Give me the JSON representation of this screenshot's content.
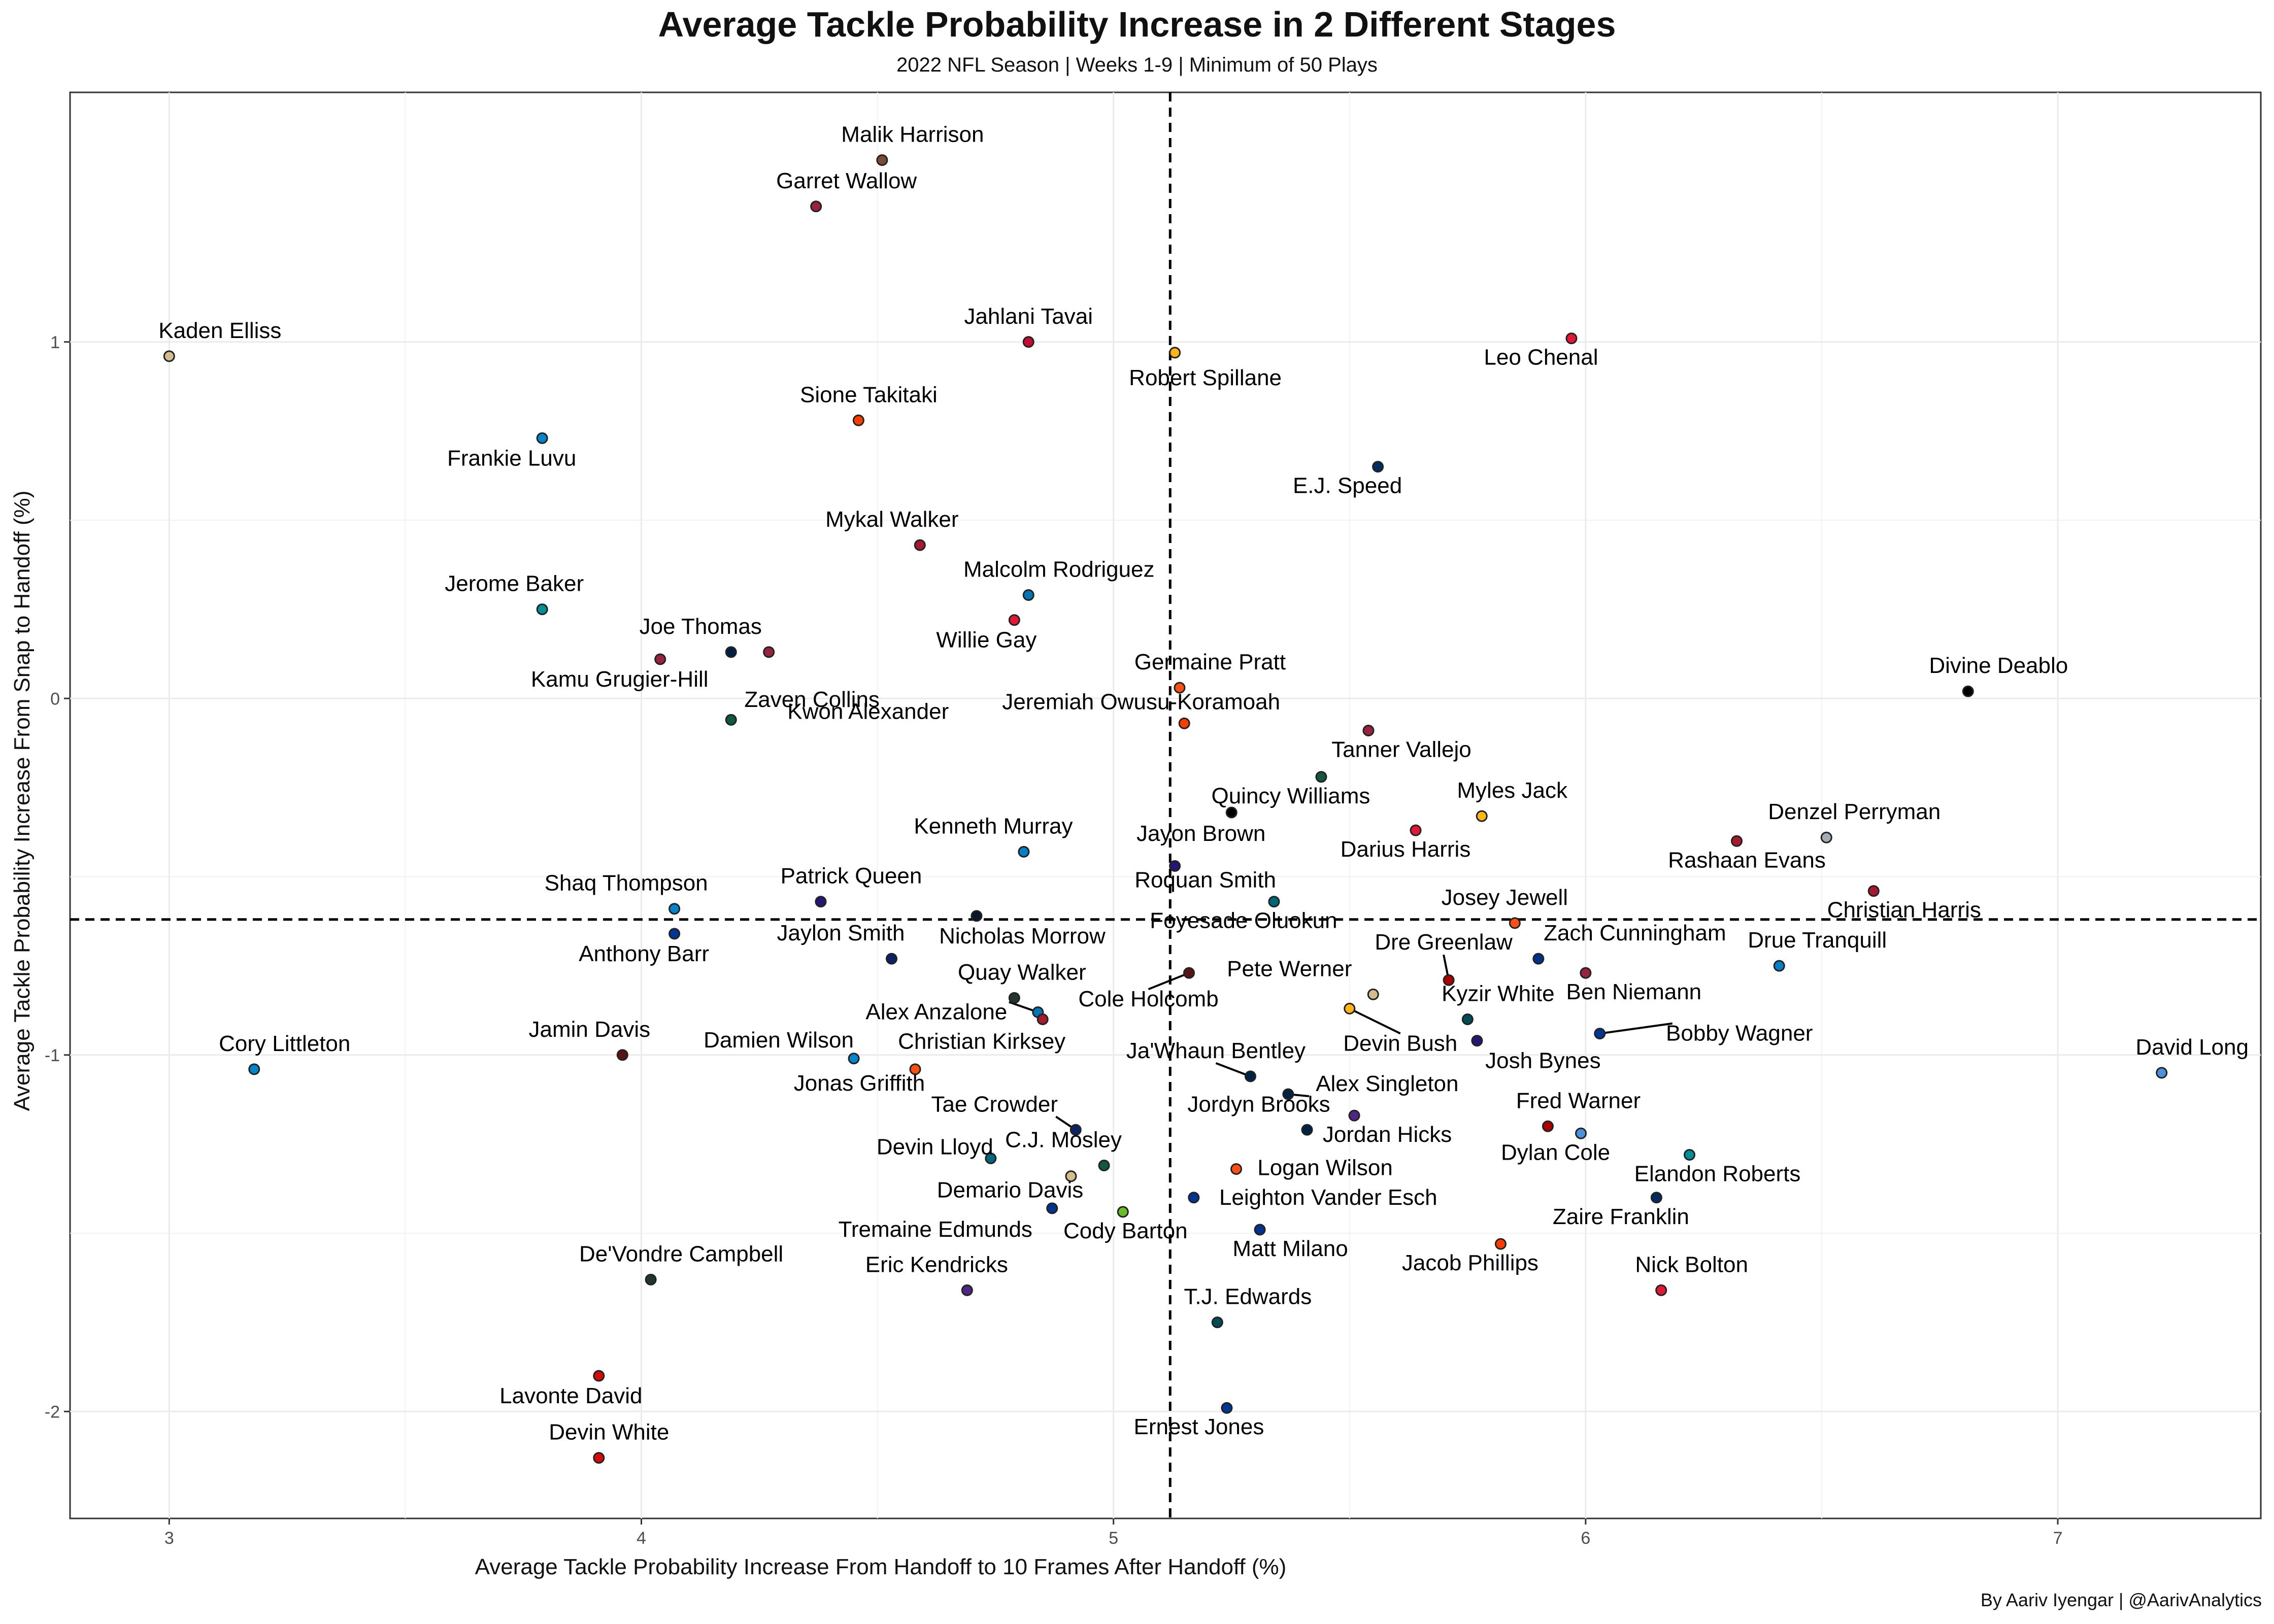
{
  "title": "Average Tackle Probability Increase in 2 Different Stages",
  "subtitle": "2022 NFL Season | Weeks 1-9 | Minimum of 50 Plays",
  "caption": "By Aariv Iyengar | @AarivAnalytics",
  "chart_data": {
    "type": "scatter",
    "xlabel": "Average Tackle Probability Increase From Handoff to 10 Frames After Handoff (%)",
    "ylabel": "Average Tackle Probability Increase From Snap to Handoff (%)",
    "xlim": [
      2.79,
      7.43
    ],
    "ylim": [
      -2.3,
      1.7
    ],
    "xticks": [
      3,
      4,
      5,
      6,
      7
    ],
    "yticks": [
      -2,
      -1,
      0,
      1
    ],
    "grid": true,
    "reference_lines": {
      "x": 5.12,
      "y": -0.62
    },
    "points": [
      {
        "label": "Malik Harrison",
        "x": 4.51,
        "y": 1.51,
        "color": "#7b4b3a"
      },
      {
        "label": "Garret Wallow",
        "x": 4.37,
        "y": 1.38,
        "color": "#97233f"
      },
      {
        "label": "Kaden Elliss",
        "x": 3.0,
        "y": 0.96,
        "color": "#d3bc8d"
      },
      {
        "label": "Jahlani Tavai",
        "x": 4.82,
        "y": 1.0,
        "color": "#c60c30"
      },
      {
        "label": "Robert Spillane",
        "x": 5.13,
        "y": 0.97,
        "color": "#ffb612"
      },
      {
        "label": "Leo Chenal",
        "x": 5.97,
        "y": 1.01,
        "color": "#e31837"
      },
      {
        "label": "Sione Takitaki",
        "x": 4.46,
        "y": 0.78,
        "color": "#ff3c00"
      },
      {
        "label": "Frankie Luvu",
        "x": 3.79,
        "y": 0.73,
        "color": "#0085ca"
      },
      {
        "label": "E.J. Speed",
        "x": 5.56,
        "y": 0.65,
        "color": "#002c5f"
      },
      {
        "label": "Mykal Walker",
        "x": 4.59,
        "y": 0.43,
        "color": "#a71930"
      },
      {
        "label": "Malcolm Rodriguez",
        "x": 4.82,
        "y": 0.29,
        "color": "#0076b6"
      },
      {
        "label": "Jerome Baker",
        "x": 3.79,
        "y": 0.25,
        "color": "#008e97"
      },
      {
        "label": "Willie Gay",
        "x": 4.79,
        "y": 0.22,
        "color": "#e31837"
      },
      {
        "label": "Joe Thomas",
        "x": 4.19,
        "y": 0.13,
        "color": "#041e42"
      },
      {
        "label": "Zaven Collins",
        "x": 4.27,
        "y": 0.13,
        "color": "#97233f"
      },
      {
        "label": "Kamu Grugier-Hill",
        "x": 4.04,
        "y": 0.11,
        "color": "#97233f"
      },
      {
        "label": "Germaine Pratt",
        "x": 5.14,
        "y": 0.03,
        "color": "#fb4f14"
      },
      {
        "label": "Divine Deablo",
        "x": 6.81,
        "y": 0.02,
        "color": "#000000"
      },
      {
        "label": "Kwon Alexander",
        "x": 4.19,
        "y": -0.06,
        "color": "#125740"
      },
      {
        "label": "Jeremiah Owusu-Koramoah",
        "x": 5.15,
        "y": -0.07,
        "color": "#ff3c00"
      },
      {
        "label": "Tanner Vallejo",
        "x": 5.54,
        "y": -0.09,
        "color": "#97233f"
      },
      {
        "label": "Quincy Williams",
        "x": 5.44,
        "y": -0.22,
        "color": "#125740"
      },
      {
        "label": "Myles Jack",
        "x": 5.78,
        "y": -0.33,
        "color": "#ffb612"
      },
      {
        "label": "Jayon Brown",
        "x": 5.25,
        "y": -0.32,
        "color": "#000000"
      },
      {
        "label": "Darius Harris",
        "x": 5.64,
        "y": -0.37,
        "color": "#e31837"
      },
      {
        "label": "Denzel Perryman",
        "x": 6.51,
        "y": -0.39,
        "color": "#a5acaf"
      },
      {
        "label": "Rashaan Evans",
        "x": 6.32,
        "y": -0.4,
        "color": "#a71930"
      },
      {
        "label": "Kenneth Murray",
        "x": 4.81,
        "y": -0.43,
        "color": "#0080c6"
      },
      {
        "label": "Christian Harris",
        "x": 6.61,
        "y": -0.54,
        "color": "#a71930"
      },
      {
        "label": "Roquan Smith",
        "x": 5.13,
        "y": -0.47,
        "color": "#241773"
      },
      {
        "label": "Foyesade Oluokun",
        "x": 5.34,
        "y": -0.57,
        "color": "#006778"
      },
      {
        "label": "Shaq Thompson",
        "x": 4.07,
        "y": -0.59,
        "color": "#0085ca"
      },
      {
        "label": "Patrick Queen",
        "x": 4.38,
        "y": -0.57,
        "color": "#241773"
      },
      {
        "label": "Nicholas Morrow",
        "x": 4.71,
        "y": -0.61,
        "color": "#0b162a"
      },
      {
        "label": "Josey Jewell",
        "x": 5.85,
        "y": -0.63,
        "color": "#fb4f14"
      },
      {
        "label": "Anthony Barr",
        "x": 4.07,
        "y": -0.66,
        "color": "#003594"
      },
      {
        "label": "Jaylon Smith",
        "x": 4.53,
        "y": -0.73,
        "color": "#0b2265"
      },
      {
        "label": "Zach Cunningham",
        "x": 5.9,
        "y": -0.73,
        "color": "#003087"
      },
      {
        "label": "Drue Tranquill",
        "x": 6.41,
        "y": -0.75,
        "color": "#0080c6"
      },
      {
        "label": "Dre Greenlaw",
        "x": 5.71,
        "y": -0.79,
        "color": "#aa0000"
      },
      {
        "label": "Ben Niemann",
        "x": 6.0,
        "y": -0.77,
        "color": "#97233f"
      },
      {
        "label": "Cole Holcomb",
        "x": 5.16,
        "y": -0.77,
        "color": "#5a1414"
      },
      {
        "label": "Pete Werner",
        "x": 5.55,
        "y": -0.83,
        "color": "#d3bc8d"
      },
      {
        "label": "Quay Walker",
        "x": 4.79,
        "y": -0.84,
        "color": "#203731"
      },
      {
        "label": "Alex Anzalone",
        "x": 4.84,
        "y": -0.88,
        "color": "#0076b6"
      },
      {
        "label": "Christian Kirksey",
        "x": 4.85,
        "y": -0.9,
        "color": "#a71930"
      },
      {
        "label": "Devin Bush",
        "x": 5.5,
        "y": -0.87,
        "color": "#ffb612"
      },
      {
        "label": "Kyzir White",
        "x": 5.75,
        "y": -0.9,
        "color": "#004c54"
      },
      {
        "label": "Bobby Wagner",
        "x": 6.03,
        "y": -0.94,
        "color": "#003594"
      },
      {
        "label": "Josh Bynes",
        "x": 5.77,
        "y": -0.96,
        "color": "#241773"
      },
      {
        "label": "Damien Wilson",
        "x": 4.45,
        "y": -1.01,
        "color": "#0085ca"
      },
      {
        "label": "Jamin Davis",
        "x": 3.96,
        "y": -1.0,
        "color": "#5a1414"
      },
      {
        "label": "Cory Littleton",
        "x": 3.18,
        "y": -1.04,
        "color": "#0085ca"
      },
      {
        "label": "Jonas Griffith",
        "x": 4.58,
        "y": -1.04,
        "color": "#fb4f14"
      },
      {
        "label": "David Long",
        "x": 7.22,
        "y": -1.05,
        "color": "#4b92db"
      },
      {
        "label": "Ja'Whaun Bentley",
        "x": 5.29,
        "y": -1.06,
        "color": "#002244"
      },
      {
        "label": "Alex Singleton",
        "x": 5.37,
        "y": -1.11,
        "color": "#002244"
      },
      {
        "label": "Jordan Hicks",
        "x": 5.51,
        "y": -1.17,
        "color": "#4f2683"
      },
      {
        "label": "Fred Warner",
        "x": 5.92,
        "y": -1.2,
        "color": "#aa0000"
      },
      {
        "label": "Tae Crowder",
        "x": 4.92,
        "y": -1.21,
        "color": "#0b2265"
      },
      {
        "label": "Jordyn Brooks",
        "x": 5.41,
        "y": -1.21,
        "color": "#002244"
      },
      {
        "label": "Dylan Cole",
        "x": 5.99,
        "y": -1.22,
        "color": "#4b92db"
      },
      {
        "label": "Elandon Roberts",
        "x": 6.22,
        "y": -1.28,
        "color": "#008e97"
      },
      {
        "label": "Devin Lloyd",
        "x": 4.74,
        "y": -1.29,
        "color": "#006778"
      },
      {
        "label": "C.J. Mosley",
        "x": 4.98,
        "y": -1.31,
        "color": "#125740"
      },
      {
        "label": "Logan Wilson",
        "x": 5.26,
        "y": -1.32,
        "color": "#fb4f14"
      },
      {
        "label": "Demario Davis",
        "x": 4.91,
        "y": -1.34,
        "color": "#d3bc8d"
      },
      {
        "label": "Leighton Vander Esch",
        "x": 5.17,
        "y": -1.4,
        "color": "#003594"
      },
      {
        "label": "Zaire Franklin",
        "x": 6.15,
        "y": -1.4,
        "color": "#002c5f"
      },
      {
        "label": "Tremaine Edmunds",
        "x": 4.87,
        "y": -1.43,
        "color": "#00338d"
      },
      {
        "label": "Cody Barton",
        "x": 5.02,
        "y": -1.44,
        "color": "#69be28"
      },
      {
        "label": "Matt Milano",
        "x": 5.31,
        "y": -1.49,
        "color": "#00338d"
      },
      {
        "label": "Jacob Phillips",
        "x": 5.82,
        "y": -1.53,
        "color": "#ff3c00"
      },
      {
        "label": "De'Vondre Campbell",
        "x": 4.02,
        "y": -1.63,
        "color": "#203731"
      },
      {
        "label": "Eric Kendricks",
        "x": 4.69,
        "y": -1.66,
        "color": "#4f2683"
      },
      {
        "label": "Nick Bolton",
        "x": 6.16,
        "y": -1.66,
        "color": "#e31837"
      },
      {
        "label": "T.J. Edwards",
        "x": 5.22,
        "y": -1.75,
        "color": "#004c54"
      },
      {
        "label": "Lavonte David",
        "x": 3.91,
        "y": -1.9,
        "color": "#d50a0a"
      },
      {
        "label": "Ernest Jones",
        "x": 5.24,
        "y": -1.99,
        "color": "#003594"
      },
      {
        "label": "Devin White",
        "x": 3.91,
        "y": -2.13,
        "color": "#d50a0a"
      }
    ]
  }
}
